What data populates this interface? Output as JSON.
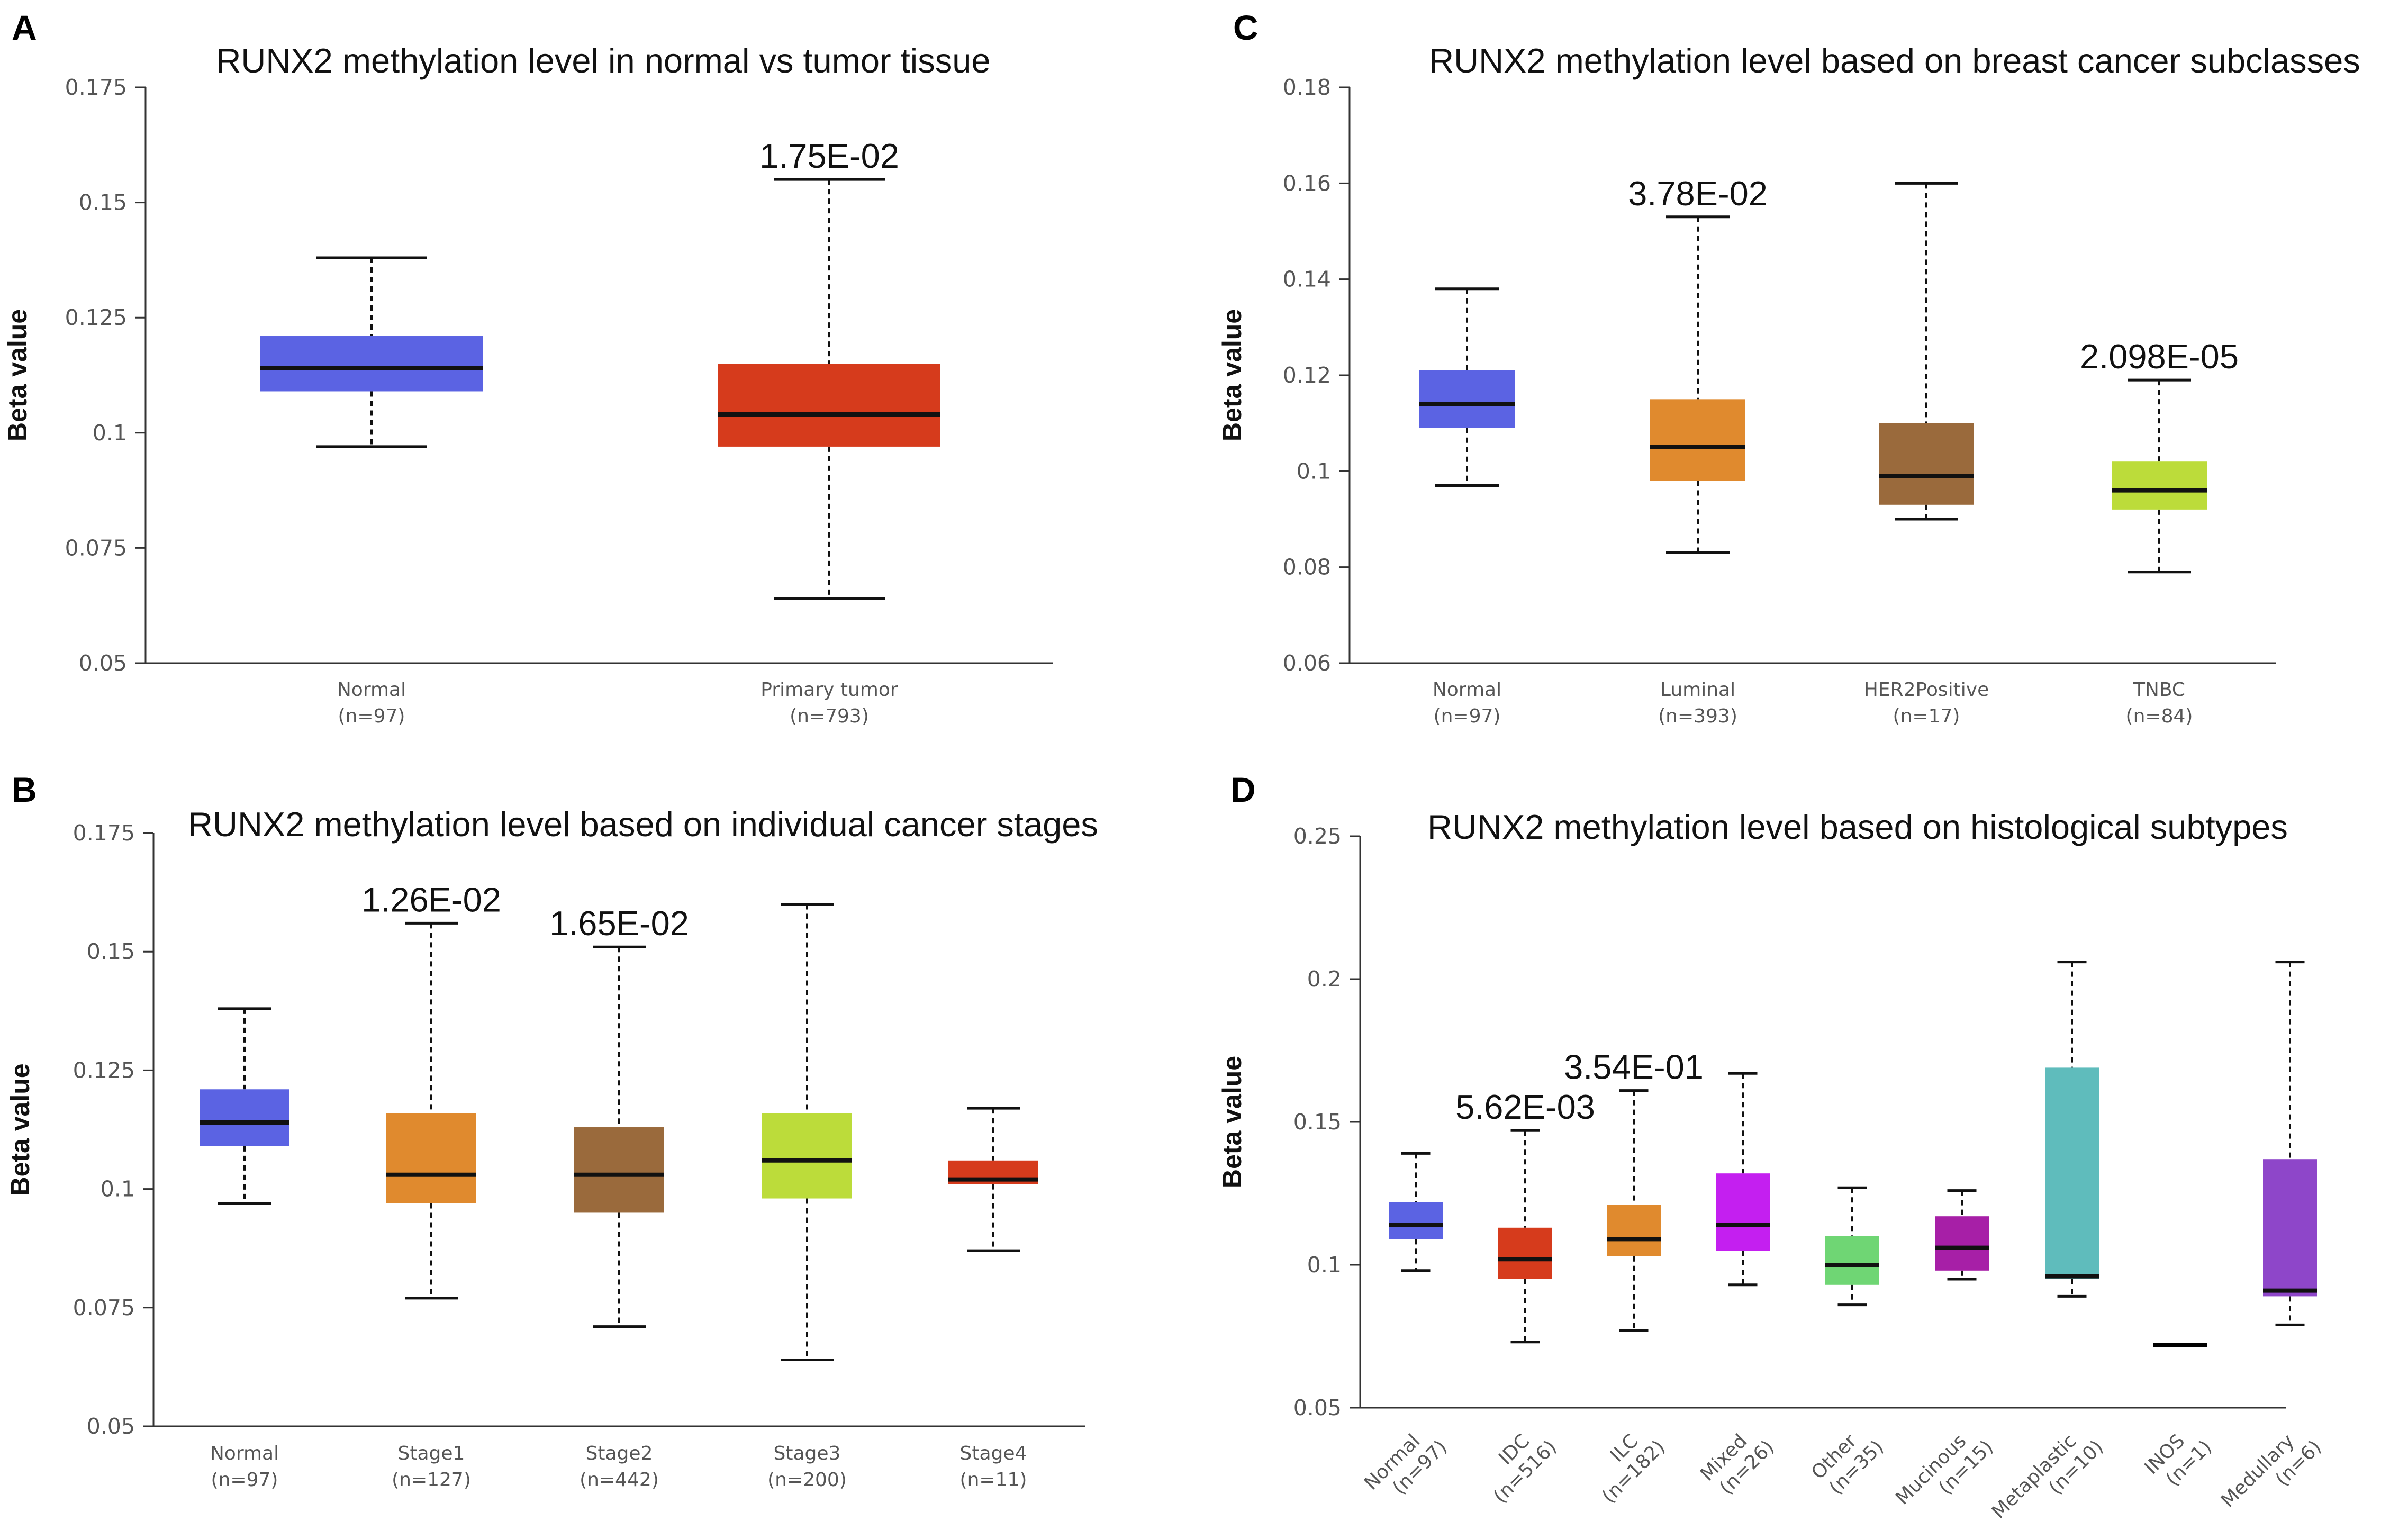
{
  "chart_data": [
    {
      "panel": "A",
      "type": "box",
      "title": "RUNX2 methylation level in normal vs tumor tissue",
      "ylabel": "Beta value",
      "ylim": [
        0.05,
        0.175
      ],
      "yticks": [
        "0.05",
        "0.075",
        "0.1",
        "0.125",
        "0.15",
        "0.175"
      ],
      "categories": [
        {
          "name": "Normal",
          "n": "(n=97)",
          "color": "#5b63e3",
          "min": 0.097,
          "q1": 0.109,
          "median": 0.114,
          "q3": 0.121,
          "max": 0.138,
          "pvalue": ""
        },
        {
          "name": "Primary tumor",
          "n": "(n=793)",
          "color": "#d63b1c",
          "min": 0.064,
          "q1": 0.097,
          "median": 0.104,
          "q3": 0.115,
          "max": 0.155,
          "pvalue": "1.75E-02"
        }
      ]
    },
    {
      "panel": "C",
      "type": "box",
      "title": "RUNX2 methylation level based on breast cancer subclasses",
      "ylabel": "Beta value",
      "ylim": [
        0.06,
        0.18
      ],
      "yticks": [
        "0.06",
        "0.08",
        "0.1",
        "0.12",
        "0.14",
        "0.16",
        "0.18"
      ],
      "categories": [
        {
          "name": "Normal",
          "n": "(n=97)",
          "color": "#5b63e3",
          "min": 0.097,
          "q1": 0.109,
          "median": 0.114,
          "q3": 0.121,
          "max": 0.138,
          "pvalue": ""
        },
        {
          "name": "Luminal",
          "n": "(n=393)",
          "color": "#e08a2e",
          "min": 0.083,
          "q1": 0.098,
          "median": 0.105,
          "q3": 0.115,
          "max": 0.153,
          "pvalue": "3.78E-02"
        },
        {
          "name": "HER2Positive",
          "n": "(n=17)",
          "color": "#9a6a3c",
          "min": 0.09,
          "q1": 0.093,
          "median": 0.099,
          "q3": 0.11,
          "max": 0.16,
          "pvalue": ""
        },
        {
          "name": "TNBC",
          "n": "(n=84)",
          "color": "#bcdc3a",
          "min": 0.079,
          "q1": 0.092,
          "median": 0.096,
          "q3": 0.102,
          "max": 0.119,
          "pvalue": "2.098E-05"
        }
      ]
    },
    {
      "panel": "B",
      "type": "box",
      "title": "RUNX2 methylation level based on individual cancer stages",
      "ylabel": "Beta value",
      "ylim": [
        0.05,
        0.175
      ],
      "yticks": [
        "0.05",
        "0.075",
        "0.1",
        "0.125",
        "0.15",
        "0.175"
      ],
      "categories": [
        {
          "name": "Normal",
          "n": "(n=97)",
          "color": "#5b63e3",
          "min": 0.097,
          "q1": 0.109,
          "median": 0.114,
          "q3": 0.121,
          "max": 0.138,
          "pvalue": ""
        },
        {
          "name": "Stage1",
          "n": "(n=127)",
          "color": "#e08a2e",
          "min": 0.077,
          "q1": 0.097,
          "median": 0.103,
          "q3": 0.116,
          "max": 0.156,
          "pvalue": "1.26E-02"
        },
        {
          "name": "Stage2",
          "n": "(n=442)",
          "color": "#9a6a3c",
          "min": 0.071,
          "q1": 0.095,
          "median": 0.103,
          "q3": 0.113,
          "max": 0.151,
          "pvalue": "1.65E-02"
        },
        {
          "name": "Stage3",
          "n": "(n=200)",
          "color": "#bcdc3a",
          "min": 0.064,
          "q1": 0.098,
          "median": 0.106,
          "q3": 0.116,
          "max": 0.16,
          "pvalue": ""
        },
        {
          "name": "Stage4",
          "n": "(n=11)",
          "color": "#d63b1c",
          "min": 0.087,
          "q1": 0.101,
          "median": 0.102,
          "q3": 0.106,
          "max": 0.117,
          "pvalue": ""
        }
      ]
    },
    {
      "panel": "D",
      "type": "box",
      "title": "RUNX2 methylation level based on histological subtypes",
      "ylabel": "Beta value",
      "ylim": [
        0.05,
        0.25
      ],
      "yticks": [
        "0.05",
        "0.1",
        "0.15",
        "0.2",
        "0.25"
      ],
      "categories": [
        {
          "name": "Normal",
          "n": "(n=97)",
          "color": "#5b63e3",
          "min": 0.098,
          "q1": 0.109,
          "median": 0.114,
          "q3": 0.122,
          "max": 0.139,
          "pvalue": ""
        },
        {
          "name": "IDC",
          "n": "(n=516)",
          "color": "#d63b1c",
          "min": 0.073,
          "q1": 0.095,
          "median": 0.102,
          "q3": 0.113,
          "max": 0.147,
          "pvalue": "5.62E-03"
        },
        {
          "name": "ILC",
          "n": "(n=182)",
          "color": "#e08a2e",
          "min": 0.077,
          "q1": 0.103,
          "median": 0.109,
          "q3": 0.121,
          "max": 0.161,
          "pvalue": "3.54E-01"
        },
        {
          "name": "Mixed",
          "n": "(n=26)",
          "color": "#c41ff0",
          "min": 0.093,
          "q1": 0.105,
          "median": 0.114,
          "q3": 0.132,
          "max": 0.167,
          "pvalue": ""
        },
        {
          "name": "Other",
          "n": "(n=35)",
          "color": "#6fd674",
          "min": 0.086,
          "q1": 0.093,
          "median": 0.1,
          "q3": 0.11,
          "max": 0.127,
          "pvalue": ""
        },
        {
          "name": "Mucinous",
          "n": "(n=15)",
          "color": "#a71fa7",
          "min": 0.095,
          "q1": 0.098,
          "median": 0.106,
          "q3": 0.117,
          "max": 0.126,
          "pvalue": ""
        },
        {
          "name": "Metaplastic",
          "n": "(n=10)",
          "color": "#5fbcbc",
          "min": 0.089,
          "q1": 0.095,
          "median": 0.096,
          "q3": 0.169,
          "max": 0.206,
          "pvalue": ""
        },
        {
          "name": "INOS",
          "n": "(n=1)",
          "color": "#000000",
          "min": 0.072,
          "q1": 0.072,
          "median": 0.072,
          "q3": 0.072,
          "max": 0.072,
          "pvalue": ""
        },
        {
          "name": "Medullary",
          "n": "(n=6)",
          "color": "#8e46c9",
          "min": 0.079,
          "q1": 0.089,
          "median": 0.091,
          "q3": 0.137,
          "max": 0.206,
          "pvalue": ""
        }
      ]
    }
  ]
}
